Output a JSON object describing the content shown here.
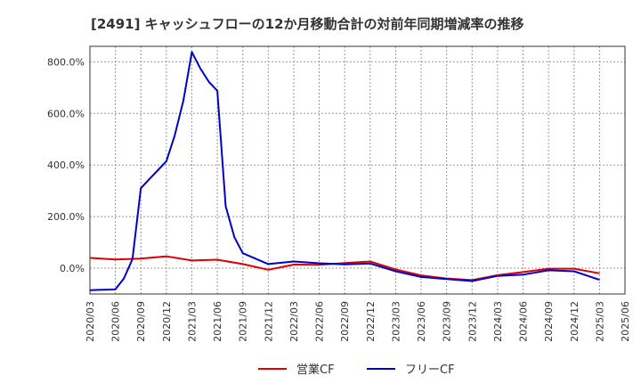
{
  "chart_data": {
    "type": "line",
    "title": "[2491]  キャッシュフローの12か月移動合計の対前年同期増減率の推移",
    "xlabel": "",
    "ylabel": "",
    "ylim": [
      -100,
      860
    ],
    "yticks": [
      0,
      200,
      400,
      600,
      800
    ],
    "ytick_labels": [
      "0.0%",
      "200.0%",
      "400.0%",
      "600.0%",
      "800.0%"
    ],
    "x_categories": [
      "2020/03",
      "2020/06",
      "2020/09",
      "2020/12",
      "2021/03",
      "2021/06",
      "2021/09",
      "2021/12",
      "2022/03",
      "2022/06",
      "2022/09",
      "2022/12",
      "2023/03",
      "2023/06",
      "2023/09",
      "2023/12",
      "2024/03",
      "2024/06",
      "2024/09",
      "2024/12",
      "2025/03",
      "2025/06"
    ],
    "grid": true,
    "legend_position": "bottom",
    "series": [
      {
        "name": "営業CF",
        "color": "#dd0000",
        "points": [
          [
            0,
            40
          ],
          [
            1,
            34
          ],
          [
            2,
            37
          ],
          [
            3,
            46
          ],
          [
            4,
            30
          ],
          [
            5,
            33
          ],
          [
            6,
            16
          ],
          [
            7,
            -6
          ],
          [
            8,
            14
          ],
          [
            9,
            13
          ],
          [
            10,
            20
          ],
          [
            11,
            26
          ],
          [
            12,
            -5
          ],
          [
            13,
            -28
          ],
          [
            14,
            -40
          ],
          [
            15,
            -46
          ],
          [
            16,
            -27
          ],
          [
            17,
            -15
          ],
          [
            18,
            -2
          ],
          [
            19,
            -2
          ],
          [
            20,
            -20
          ]
        ]
      },
      {
        "name": "フリーCF",
        "color": "#0000cc",
        "points": [
          [
            0,
            -85
          ],
          [
            0.33,
            -84
          ],
          [
            0.67,
            -83
          ],
          [
            1,
            -82
          ],
          [
            1.33,
            -40
          ],
          [
            1.67,
            35
          ],
          [
            2,
            310
          ],
          [
            2.33,
            345
          ],
          [
            2.67,
            380
          ],
          [
            3,
            415
          ],
          [
            3.33,
            515
          ],
          [
            3.67,
            650
          ],
          [
            4,
            838
          ],
          [
            4.33,
            775
          ],
          [
            4.67,
            722
          ],
          [
            5,
            688
          ],
          [
            5.33,
            240
          ],
          [
            5.67,
            120
          ],
          [
            6,
            58
          ],
          [
            7,
            16
          ],
          [
            8,
            26
          ],
          [
            9,
            19
          ],
          [
            10,
            15
          ],
          [
            11,
            18
          ],
          [
            12,
            -12
          ],
          [
            13,
            -34
          ],
          [
            14,
            -42
          ],
          [
            15,
            -50
          ],
          [
            16,
            -30
          ],
          [
            17,
            -25
          ],
          [
            18,
            -8
          ],
          [
            19,
            -12
          ],
          [
            20,
            -45
          ]
        ]
      }
    ]
  }
}
